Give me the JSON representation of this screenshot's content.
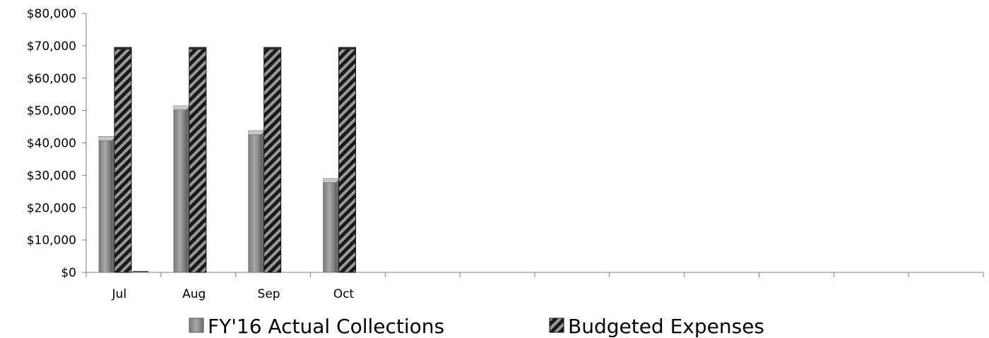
{
  "chart_data": {
    "type": "bar",
    "categories": [
      "Jul",
      "Aug",
      "Sep",
      "Oct",
      "",
      "",
      "",
      "",
      "",
      "",
      "",
      ""
    ],
    "series": [
      {
        "name": "FY'16 Actual Collections",
        "values": [
          42000,
          51500,
          43800,
          29000,
          null,
          null,
          null,
          null,
          null,
          null,
          null,
          null
        ],
        "pattern": "solid-gray"
      },
      {
        "name": "Budgeted Expenses",
        "values": [
          69500,
          69500,
          69500,
          69500,
          null,
          null,
          null,
          null,
          null,
          null,
          null,
          null
        ],
        "pattern": "diagonal-stripe"
      }
    ],
    "y_ticks": [
      "$0",
      "$10,000",
      "$20,000",
      "$30,000",
      "$40,000",
      "$50,000",
      "$60,000",
      "$70,000",
      "$80,000"
    ],
    "ylim": [
      0,
      80000
    ],
    "title": "",
    "xlabel": "",
    "ylabel": "",
    "legend_position": "bottom",
    "grid": false,
    "colors": {
      "collections": "#8c8c8c",
      "collections_light": "#b8b8b8",
      "collections_dark": "#5e5e5e",
      "stripe_dark": "#1a1a1a",
      "stripe_light": "#9a9a9a"
    }
  }
}
